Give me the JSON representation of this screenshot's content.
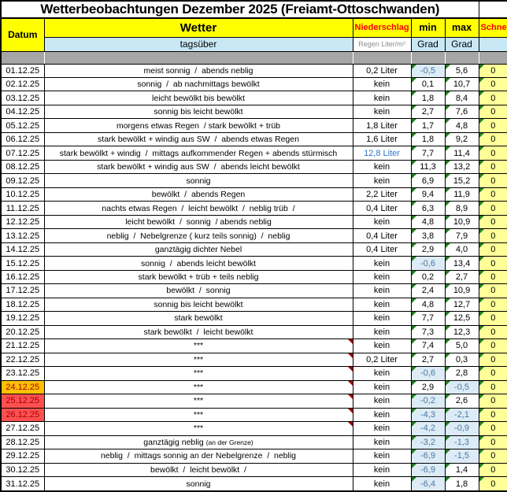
{
  "title": "Wetterbeobachtungen Dezember 2025 (Freiamt-Ottoschwanden)",
  "header": {
    "datum": "Datum",
    "wetter": "Wetter",
    "niederschlag": "Niederschlag",
    "min": "min",
    "max": "max",
    "schnee": "Schnee",
    "tagsueber": "tagsüber",
    "regen_unit": "Regen Liter/m²",
    "grad": "Grad"
  },
  "colors": {
    "header_yellow": "#FFFF00",
    "header_cyan": "#C9E8F5",
    "header_red_text": "#FF0000",
    "separator_gray": "#A6A6A6",
    "schnee_yellow": "#FFFF99",
    "cold_cell_bg": "#DCEBF5",
    "cold_cell_text": "#4779A4",
    "date_orange_bg": "#FFC000",
    "date_red_bg": "#FF5050",
    "date_alert_text": "#9C0006",
    "rain_blue_text": "#2E74C8",
    "flag_green": "#1E7E1E",
    "flag_red": "#A00000"
  },
  "rows": [
    {
      "date": "01.12.25",
      "wetter": "meist sonnig  /  abends neblig",
      "niederschlag": "0,2 Liter",
      "min": "-0,5",
      "max": "5,6",
      "schnee": "0"
    },
    {
      "date": "02.12.25",
      "wetter": "sonnig  /  ab nachmittags bewölkt",
      "niederschlag": "kein",
      "min": "0,1",
      "max": "10,7",
      "schnee": "0"
    },
    {
      "date": "03.12.25",
      "wetter": "leicht bewölkt bis bewölkt",
      "niederschlag": "kein",
      "min": "1,8",
      "max": "8,4",
      "schnee": "0"
    },
    {
      "date": "04.12.25",
      "wetter": "sonnig bis leicht bewölkt",
      "niederschlag": "kein",
      "min": "2,7",
      "max": "7,6",
      "schnee": "0"
    },
    {
      "date": "05.12.25",
      "wetter": "morgens etwas Regen  / stark bewölkt + trüb",
      "niederschlag": "1,8 Liter",
      "min": "1,7",
      "max": "4,8",
      "schnee": "0"
    },
    {
      "date": "06.12.25",
      "wetter": "stark bewölkt + windig aus SW  /  abends etwas Regen",
      "niederschlag": "1,6 Liter",
      "min": "1,8",
      "max": "9,2",
      "schnee": "0"
    },
    {
      "date": "07.12.25",
      "wetter": "stark bewölkt + windig  /  mittags aufkommender Regen + abends stürmisch",
      "niederschlag": "12,8 Liter",
      "nied_blue": true,
      "min": "7,7",
      "max": "11,4",
      "schnee": "0"
    },
    {
      "date": "08.12.25",
      "wetter": "stark bewölkt + windig aus SW  /  abends leicht bewölkt",
      "niederschlag": "kein",
      "min": "11,3",
      "max": "13,2",
      "schnee": "0"
    },
    {
      "date": "09.12.25",
      "wetter": "sonnig",
      "niederschlag": "kein",
      "min": "6,9",
      "max": "15,2",
      "schnee": "0"
    },
    {
      "date": "10.12.25",
      "wetter": "bewölkt  /  abends Regen",
      "niederschlag": "2,2 Liter",
      "min": "9,4",
      "max": "11,9",
      "schnee": "0"
    },
    {
      "date": "11.12.25",
      "wetter": "nachts etwas Regen  /  leicht bewölkt  /  neblig trüb  /",
      "niederschlag": "0,4 Liter",
      "min": "6,3",
      "max": "8,9",
      "schnee": "0"
    },
    {
      "date": "12.12.25",
      "wetter": "leicht bewölkt  /  sonnig  / abends neblig",
      "niederschlag": "kein",
      "min": "4,8",
      "max": "10,9",
      "schnee": "0"
    },
    {
      "date": "13.12.25",
      "wetter": "neblig  /  Nebelgrenze ( kurz teils sonnig)  /  neblig",
      "niederschlag": "0,4 Liter",
      "min": "3,8",
      "max": "7,9",
      "schnee": "0"
    },
    {
      "date": "14.12.25",
      "wetter": "ganztägig dichter Nebel",
      "niederschlag": "0,4 Liter",
      "min": "2,9",
      "max": "4,0",
      "schnee": "0"
    },
    {
      "date": "15.12.25",
      "wetter": "sonnig  /  abends leicht bewölkt",
      "niederschlag": "kein",
      "min": "-0,6",
      "max": "13,4",
      "schnee": "0"
    },
    {
      "date": "16.12.25",
      "wetter": "stark bewölkt + trüb + teils neblig",
      "niederschlag": "kein",
      "min": "0,2",
      "max": "2,7",
      "schnee": "0"
    },
    {
      "date": "17.12.25",
      "wetter": "bewölkt  /  sonnig",
      "niederschlag": "kein",
      "min": "2,4",
      "max": "10,9",
      "schnee": "0"
    },
    {
      "date": "18.12.25",
      "wetter": "sonnig bis leicht bewölkt",
      "niederschlag": "kein",
      "min": "4,8",
      "max": "12,7",
      "schnee": "0"
    },
    {
      "date": "19.12.25",
      "wetter": "stark bewölkt",
      "niederschlag": "kein",
      "min": "7,7",
      "max": "12,5",
      "schnee": "0"
    },
    {
      "date": "20.12.25",
      "wetter": "stark bewölkt  /  leicht bewölkt",
      "niederschlag": "kein",
      "min": "7,3",
      "max": "12,3",
      "schnee": "0"
    },
    {
      "date": "21.12.25",
      "wetter": "***",
      "comment": true,
      "niederschlag": "kein",
      "min": "7,4",
      "max": "5,0",
      "schnee": "0"
    },
    {
      "date": "22.12.25",
      "wetter": "***",
      "comment": true,
      "niederschlag": "0,2 Liter",
      "min": "2,7",
      "max": "0,3",
      "schnee": "0"
    },
    {
      "date": "23.12.25",
      "wetter": "***",
      "comment": true,
      "niederschlag": "kein",
      "min": "-0,6",
      "max": "2,8",
      "schnee": "0"
    },
    {
      "date": "24.12.25",
      "wetter": "***",
      "comment": true,
      "date_style": "orange",
      "niederschlag": "kein",
      "min": "2,9",
      "max": "-0,5",
      "schnee": "0"
    },
    {
      "date": "25.12.25",
      "wetter": "***",
      "comment": true,
      "date_style": "red",
      "niederschlag": "kein",
      "min": "-0,2",
      "max": "2,6",
      "schnee": "0"
    },
    {
      "date": "26.12.25",
      "wetter": "***",
      "comment": true,
      "date_style": "red",
      "niederschlag": "kein",
      "min": "-4,3",
      "max": "-2,1",
      "schnee": "0"
    },
    {
      "date": "27.12.25",
      "wetter": "***",
      "comment": true,
      "niederschlag": "kein",
      "min": "-4,2",
      "max": "-0,9",
      "schnee": "0"
    },
    {
      "date": "28.12.25",
      "wetter": "ganztägig neblig ",
      "wetter_small": "(an der Grenze)",
      "niederschlag": "kein",
      "min": "-3,2",
      "max": "-1,3",
      "schnee": "0"
    },
    {
      "date": "29.12.25",
      "wetter": "neblig  /  mittags sonnig an der Nebelgrenze  /  neblig",
      "niederschlag": "kein",
      "min": "-6,9",
      "max": "-1,5",
      "schnee": "0"
    },
    {
      "date": "30.12.25",
      "wetter": "bewölkt  /  leicht bewölkt  /",
      "niederschlag": "kein",
      "min": "-6,9",
      "max": "1,4",
      "schnee": "0"
    },
    {
      "date": "31.12.25",
      "wetter": "sonnig",
      "niederschlag": "kein",
      "min": "-6,4",
      "max": "1,8",
      "schnee": "0"
    }
  ]
}
